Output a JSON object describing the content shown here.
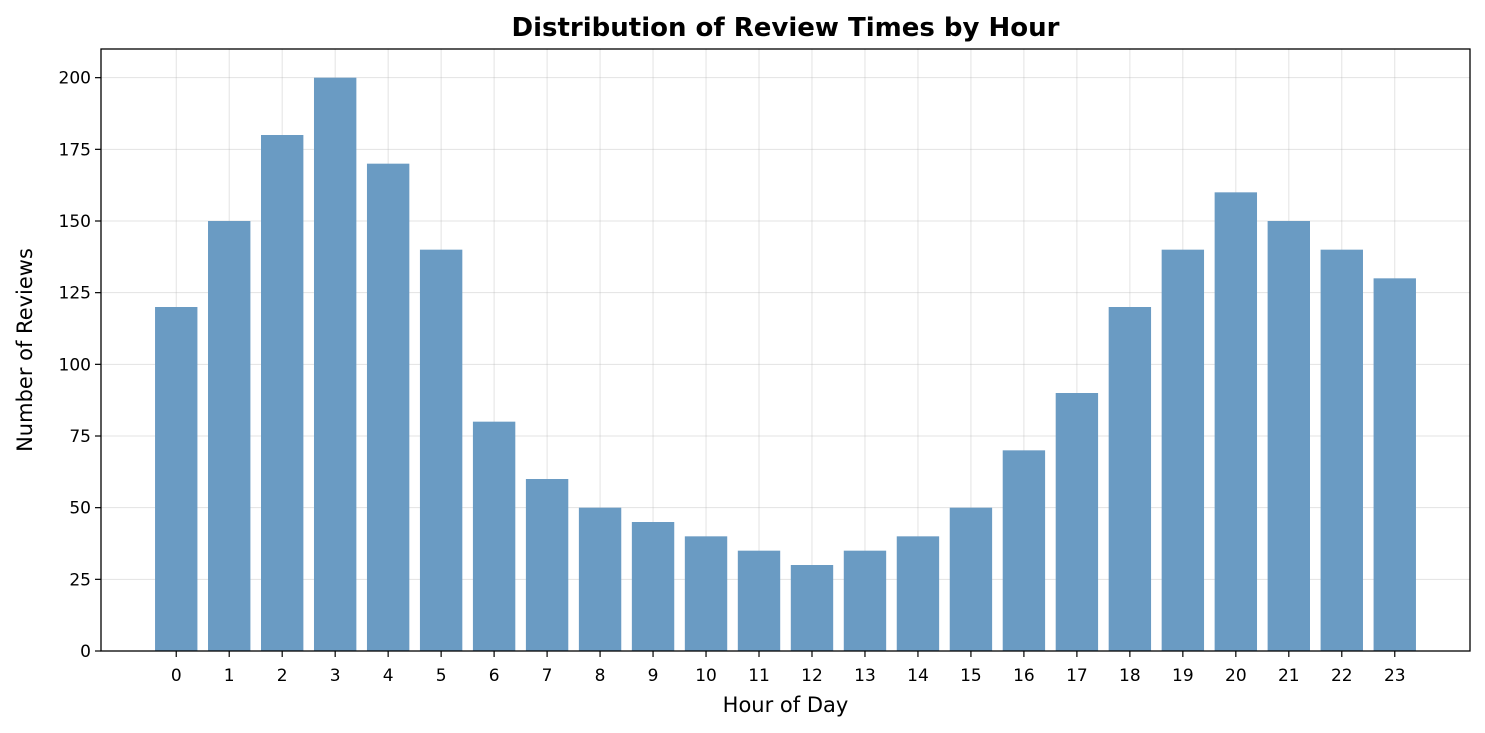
{
  "chart_data": {
    "type": "bar",
    "title": "Distribution of Review Times by Hour",
    "xlabel": "Hour of Day",
    "ylabel": "Number of Reviews",
    "categories": [
      "0",
      "1",
      "2",
      "3",
      "4",
      "5",
      "6",
      "7",
      "8",
      "9",
      "10",
      "11",
      "12",
      "13",
      "14",
      "15",
      "16",
      "17",
      "18",
      "19",
      "20",
      "21",
      "22",
      "23"
    ],
    "values": [
      120,
      150,
      180,
      200,
      170,
      140,
      80,
      60,
      50,
      45,
      40,
      35,
      30,
      35,
      40,
      50,
      70,
      90,
      120,
      140,
      160,
      150,
      140,
      130
    ],
    "ylim": [
      0,
      210
    ],
    "yticks": [
      0,
      25,
      50,
      75,
      100,
      125,
      150,
      175,
      200
    ],
    "grid": true,
    "bar_color": "#6a9bc3"
  }
}
